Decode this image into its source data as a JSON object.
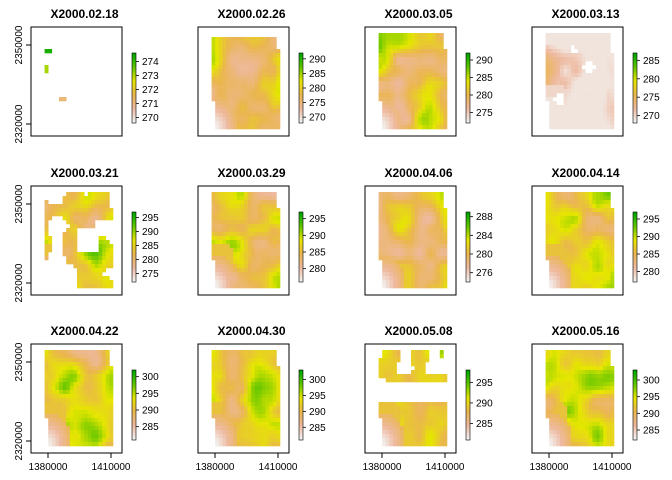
{
  "chart_data": {
    "type": "heatmap",
    "colormap": [
      "#00A600",
      "#63C600",
      "#E6E600",
      "#EAB64E",
      "#EEB99F",
      "#F2F2F2"
    ],
    "x_tick_labels": [
      "1380000",
      "1410000"
    ],
    "y_tick_labels": [
      "2320000",
      "2350000"
    ],
    "panels": [
      {
        "title": "X2000.02.18",
        "legend": [
          "274",
          "273",
          "272",
          "271",
          "270"
        ],
        "range": [
          269.6,
          274.6
        ],
        "coverage": "sparse"
      },
      {
        "title": "X2000.02.26",
        "legend": [
          "290",
          "285",
          "280",
          "275",
          "270"
        ],
        "range": [
          268,
          292
        ],
        "coverage": "patchy"
      },
      {
        "title": "X2000.03.05",
        "legend": [
          "290",
          "285",
          "280",
          "275"
        ],
        "range": [
          272,
          292
        ],
        "coverage": "full"
      },
      {
        "title": "X2000.03.13",
        "legend": [
          "285",
          "280",
          "275",
          "270"
        ],
        "range": [
          268,
          287
        ],
        "coverage": "mostly-low"
      },
      {
        "title": "X2000.03.21",
        "legend": [
          "295",
          "290",
          "285",
          "280",
          "275"
        ],
        "range": [
          272,
          297
        ],
        "coverage": "gappy"
      },
      {
        "title": "X2000.03.29",
        "legend": [
          "295",
          "290",
          "285",
          "280"
        ],
        "range": [
          276,
          297
        ],
        "coverage": "full"
      },
      {
        "title": "X2000.04.06",
        "legend": [
          "288",
          "284",
          "280",
          "276"
        ],
        "range": [
          274,
          289
        ],
        "coverage": "full"
      },
      {
        "title": "X2000.04.14",
        "legend": [
          "295",
          "290",
          "285",
          "280"
        ],
        "range": [
          277,
          297
        ],
        "coverage": "full"
      },
      {
        "title": "X2000.04.22",
        "legend": [
          "300",
          "295",
          "290",
          "285"
        ],
        "range": [
          281,
          302
        ],
        "coverage": "full"
      },
      {
        "title": "X2000.04.30",
        "legend": [
          "300",
          "295",
          "290",
          "285"
        ],
        "range": [
          281,
          303
        ],
        "coverage": "full"
      },
      {
        "title": "X2000.05.08",
        "legend": [
          "295",
          "290",
          "285"
        ],
        "range": [
          281,
          298
        ],
        "coverage": "split"
      },
      {
        "title": "X2000.05.16",
        "legend": [
          "300",
          "295",
          "290",
          "285"
        ],
        "range": [
          282,
          303
        ],
        "coverage": "full"
      }
    ]
  }
}
